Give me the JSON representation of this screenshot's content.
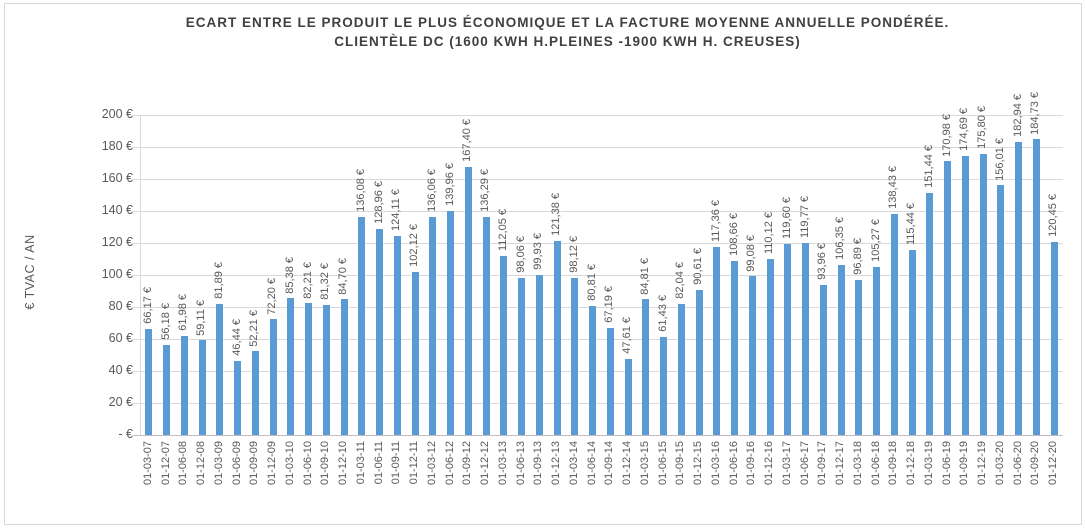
{
  "title": {
    "line1": "ECART ENTRE LE PRODUIT LE PLUS ÉCONOMIQUE ET LA FACTURE MOYENNE ANNUELLE PONDÉRÉE.",
    "line2": "CLIENTÈLE DC (1600 KWH H.PLEINES -1900 KWH H. CREUSES)"
  },
  "y_axis": {
    "title": "€ TVAC / AN",
    "tick_labels": [
      "200 €",
      "180 €",
      "160 €",
      "140 €",
      "120 €",
      "100 €",
      "80 €",
      "60 €",
      "40 €",
      "20 €",
      "- €"
    ]
  },
  "colors": {
    "bar": "#5b9bd5",
    "grid": "#d9d9d9",
    "axis_text": "#595959",
    "title_text": "#404040",
    "border": "#d9d9d9"
  },
  "chart_data": {
    "type": "bar",
    "title": "ECART ENTRE LE PRODUIT LE PLUS ÉCONOMIQUE ET LA FACTURE MOYENNE ANNUELLE PONDÉRÉE. CLIENTÈLE DC (1600 KWH H.PLEINES -1900 KWH H. CREUSES)",
    "xlabel": "",
    "ylabel": "€ TVAC / AN",
    "ylim": [
      0,
      200
    ],
    "ytick_step": 20,
    "grid": true,
    "legend": "none",
    "bar_color": "#5b9bd5",
    "categories": [
      "01-03-07",
      "01-12-07",
      "01-06-08",
      "01-12-08",
      "01-03-09",
      "01-06-09",
      "01-09-09",
      "01-12-09",
      "01-03-10",
      "01-06-10",
      "01-09-10",
      "01-12-10",
      "01-03-11",
      "01-06-11",
      "01-09-11",
      "01-12-11",
      "01-03-12",
      "01-06-12",
      "01-09-12",
      "01-12-12",
      "01-03-13",
      "01-06-13",
      "01-09-13",
      "01-12-13",
      "01-03-14",
      "01-06-14",
      "01-09-14",
      "01-12-14",
      "01-03-15",
      "01-06-15",
      "01-09-15",
      "01-12-15",
      "01-03-16",
      "01-06-16",
      "01-09-16",
      "01-12-16",
      "01-03-17",
      "01-06-17",
      "01-09-17",
      "01-12-17",
      "01-03-18",
      "01-06-18",
      "01-09-18",
      "01-12-18",
      "01-03-19",
      "01-06-19",
      "01-09-19",
      "01-12-19",
      "01-03-20",
      "01-06-20",
      "01-09-20",
      "01-12-20"
    ],
    "values": [
      66.17,
      56.18,
      61.98,
      59.11,
      81.89,
      46.44,
      52.21,
      72.2,
      85.38,
      82.21,
      81.32,
      84.7,
      136.08,
      128.96,
      124.11,
      102.12,
      136.06,
      139.96,
      167.4,
      136.29,
      112.05,
      98.06,
      99.93,
      121.38,
      98.12,
      80.81,
      67.19,
      47.61,
      84.81,
      61.43,
      82.04,
      90.61,
      117.36,
      108.66,
      99.08,
      110.12,
      119.6,
      119.77,
      93.96,
      106.35,
      96.89,
      105.27,
      138.43,
      115.44,
      151.44,
      170.98,
      174.69,
      175.8,
      156.01,
      182.94,
      184.73,
      120.45
    ],
    "value_labels": [
      "66,17 €",
      "56,18 €",
      "61,98 €",
      "59,11 €",
      "81,89 €",
      "46,44 €",
      "52,21 €",
      "72,20 €",
      "85,38 €",
      "82,21 €",
      "81,32 €",
      "84,70 €",
      "136,08 €",
      "128,96 €",
      "124,11 €",
      "102,12 €",
      "136,06 €",
      "139,96 €",
      "167,40 €",
      "136,29 €",
      "112,05 €",
      "98,06 €",
      "99,93 €",
      "121,38 €",
      "98,12 €",
      "80,81 €",
      "67,19 €",
      "47,61 €",
      "84,81 €",
      "61,43 €",
      "82,04 €",
      "90,61 €",
      "117,36 €",
      "108,66 €",
      "99,08 €",
      "110,12 €",
      "119,60 €",
      "119,77 €",
      "93,96 €",
      "106,35 €",
      "96,89 €",
      "105,27 €",
      "138,43 €",
      "115,44 €",
      "151,44 €",
      "170,98 €",
      "174,69 €",
      "175,80 €",
      "156,01 €",
      "182,94 €",
      "184,73 €",
      "120,45 €"
    ]
  }
}
